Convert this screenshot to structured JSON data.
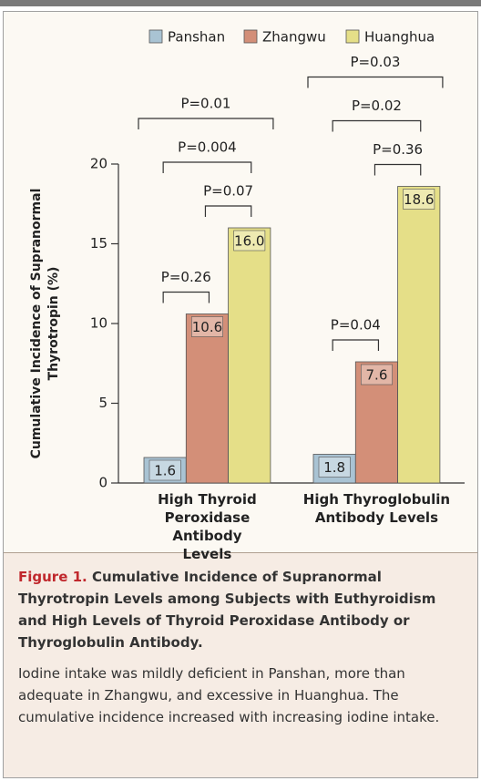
{
  "chart_data": {
    "type": "bar",
    "y_label": "Cumulative Incidence of Supranormal Thyrotropin (%)",
    "categories": [
      "High Thyroid Peroxidase Antibody Levels",
      "High Thyroglobulin Antibody Levels"
    ],
    "series": [
      {
        "name": "Panshan",
        "color": "#a9c3d3",
        "values": [
          1.6,
          1.8
        ],
        "value_labels": [
          "1.6",
          "1.8"
        ]
      },
      {
        "name": "Zhangwu",
        "color": "#d38f78",
        "values": [
          10.6,
          7.6
        ],
        "value_labels": [
          "10.6",
          "7.6"
        ]
      },
      {
        "name": "Huanghua",
        "color": "#e5df88",
        "values": [
          16.0,
          18.6
        ],
        "value_labels": [
          "16.0",
          "18.6"
        ]
      }
    ],
    "p_values": [
      [
        "P=0.26",
        "P=0.07",
        "P=0.004",
        "P=0.01"
      ],
      [
        "P=0.04",
        "P=0.36",
        "P=0.02",
        "P=0.03"
      ]
    ],
    "ylim": [
      0,
      20
    ],
    "yticks": [
      0,
      5,
      10,
      15,
      20
    ]
  },
  "caption": {
    "label": "Figure 1.",
    "title": "Cumulative Incidence of Supranormal Thyrotropin Levels among Subjects with Euthyroidism and High Levels of Thyroid Peroxidase Antibody or Thyroglobulin Antibody.",
    "text": "Iodine intake was mildly deficient in Panshan, more than adequate in Zhangwu, and excessive in Huanghua. The cumulative incidence increased with increasing iodine intake."
  }
}
